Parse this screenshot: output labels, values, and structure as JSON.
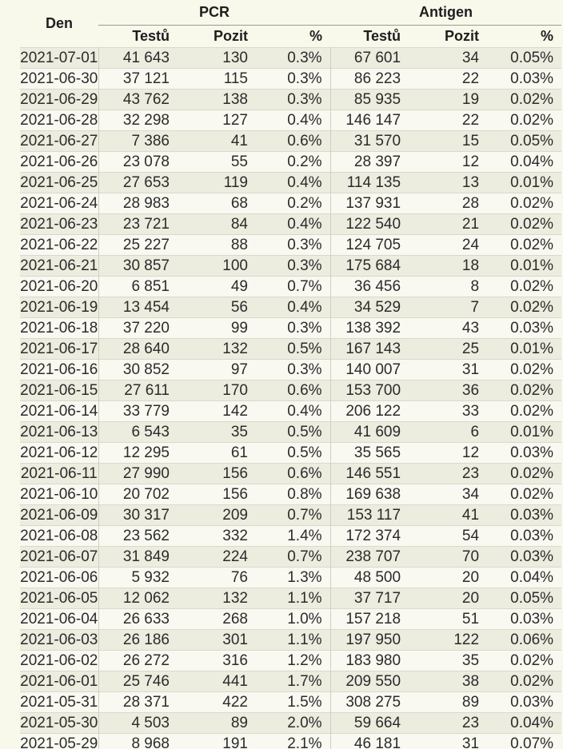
{
  "colors": {
    "page_bg": "#f8f8eb",
    "row_odd_bg": "#ececdf",
    "row_even_bg": "#f9f9f1",
    "row_border": "#d9d9cc",
    "column_divider": "#cfcfc2",
    "group_underline": "#9a9a8e",
    "header_text": "#1e1e1e",
    "text": "#2b2b2b"
  },
  "chart_data": {
    "type": "table",
    "den_header": "Den",
    "groups": [
      "PCR",
      "Antigen"
    ],
    "sub_headers": [
      "Testů",
      "Pozit",
      "%",
      "Testů",
      "Pozit",
      "%"
    ],
    "columns": [
      "Den",
      "PCR Testů",
      "PCR Pozit",
      "PCR %",
      "Antigen Testů",
      "Antigen Pozit",
      "Antigen %"
    ],
    "rows": [
      [
        "2021-07-01",
        "41 643",
        "130",
        "0.3%",
        "67 601",
        "34",
        "0.05%"
      ],
      [
        "2021-06-30",
        "37 121",
        "115",
        "0.3%",
        "86 223",
        "22",
        "0.03%"
      ],
      [
        "2021-06-29",
        "43 762",
        "138",
        "0.3%",
        "85 935",
        "19",
        "0.02%"
      ],
      [
        "2021-06-28",
        "32 298",
        "127",
        "0.4%",
        "146 147",
        "22",
        "0.02%"
      ],
      [
        "2021-06-27",
        "7 386",
        "41",
        "0.6%",
        "31 570",
        "15",
        "0.05%"
      ],
      [
        "2021-06-26",
        "23 078",
        "55",
        "0.2%",
        "28 397",
        "12",
        "0.04%"
      ],
      [
        "2021-06-25",
        "27 653",
        "119",
        "0.4%",
        "114 135",
        "13",
        "0.01%"
      ],
      [
        "2021-06-24",
        "28 983",
        "68",
        "0.2%",
        "137 931",
        "28",
        "0.02%"
      ],
      [
        "2021-06-23",
        "23 721",
        "84",
        "0.4%",
        "122 540",
        "21",
        "0.02%"
      ],
      [
        "2021-06-22",
        "25 227",
        "88",
        "0.3%",
        "124 705",
        "24",
        "0.02%"
      ],
      [
        "2021-06-21",
        "30 857",
        "100",
        "0.3%",
        "175 684",
        "18",
        "0.01%"
      ],
      [
        "2021-06-20",
        "6 851",
        "49",
        "0.7%",
        "36 456",
        "8",
        "0.02%"
      ],
      [
        "2021-06-19",
        "13 454",
        "56",
        "0.4%",
        "34 529",
        "7",
        "0.02%"
      ],
      [
        "2021-06-18",
        "37 220",
        "99",
        "0.3%",
        "138 392",
        "43",
        "0.03%"
      ],
      [
        "2021-06-17",
        "28 640",
        "132",
        "0.5%",
        "167 143",
        "25",
        "0.01%"
      ],
      [
        "2021-06-16",
        "30 852",
        "97",
        "0.3%",
        "140 007",
        "31",
        "0.02%"
      ],
      [
        "2021-06-15",
        "27 611",
        "170",
        "0.6%",
        "153 700",
        "36",
        "0.02%"
      ],
      [
        "2021-06-14",
        "33 779",
        "142",
        "0.4%",
        "206 122",
        "33",
        "0.02%"
      ],
      [
        "2021-06-13",
        "6 543",
        "35",
        "0.5%",
        "41 609",
        "6",
        "0.01%"
      ],
      [
        "2021-06-12",
        "12 295",
        "61",
        "0.5%",
        "35 565",
        "12",
        "0.03%"
      ],
      [
        "2021-06-11",
        "27 990",
        "156",
        "0.6%",
        "146 551",
        "23",
        "0.02%"
      ],
      [
        "2021-06-10",
        "20 702",
        "156",
        "0.8%",
        "169 638",
        "34",
        "0.02%"
      ],
      [
        "2021-06-09",
        "30 317",
        "209",
        "0.7%",
        "153 117",
        "41",
        "0.03%"
      ],
      [
        "2021-06-08",
        "23 562",
        "332",
        "1.4%",
        "172 374",
        "54",
        "0.03%"
      ],
      [
        "2021-06-07",
        "31 849",
        "224",
        "0.7%",
        "238 707",
        "70",
        "0.03%"
      ],
      [
        "2021-06-06",
        "5 932",
        "76",
        "1.3%",
        "48 500",
        "20",
        "0.04%"
      ],
      [
        "2021-06-05",
        "12 062",
        "132",
        "1.1%",
        "37 717",
        "20",
        "0.05%"
      ],
      [
        "2021-06-04",
        "26 633",
        "268",
        "1.0%",
        "157 218",
        "51",
        "0.03%"
      ],
      [
        "2021-06-03",
        "26 186",
        "301",
        "1.1%",
        "197 950",
        "122",
        "0.06%"
      ],
      [
        "2021-06-02",
        "26 272",
        "316",
        "1.2%",
        "183 980",
        "35",
        "0.02%"
      ],
      [
        "2021-06-01",
        "25 746",
        "441",
        "1.7%",
        "209 550",
        "38",
        "0.02%"
      ],
      [
        "2021-05-31",
        "28 371",
        "422",
        "1.5%",
        "308 275",
        "89",
        "0.03%"
      ],
      [
        "2021-05-30",
        "4 503",
        "89",
        "2.0%",
        "59 664",
        "23",
        "0.04%"
      ],
      [
        "2021-05-29",
        "8 968",
        "191",
        "2.1%",
        "46 181",
        "31",
        "0.07%"
      ]
    ]
  }
}
